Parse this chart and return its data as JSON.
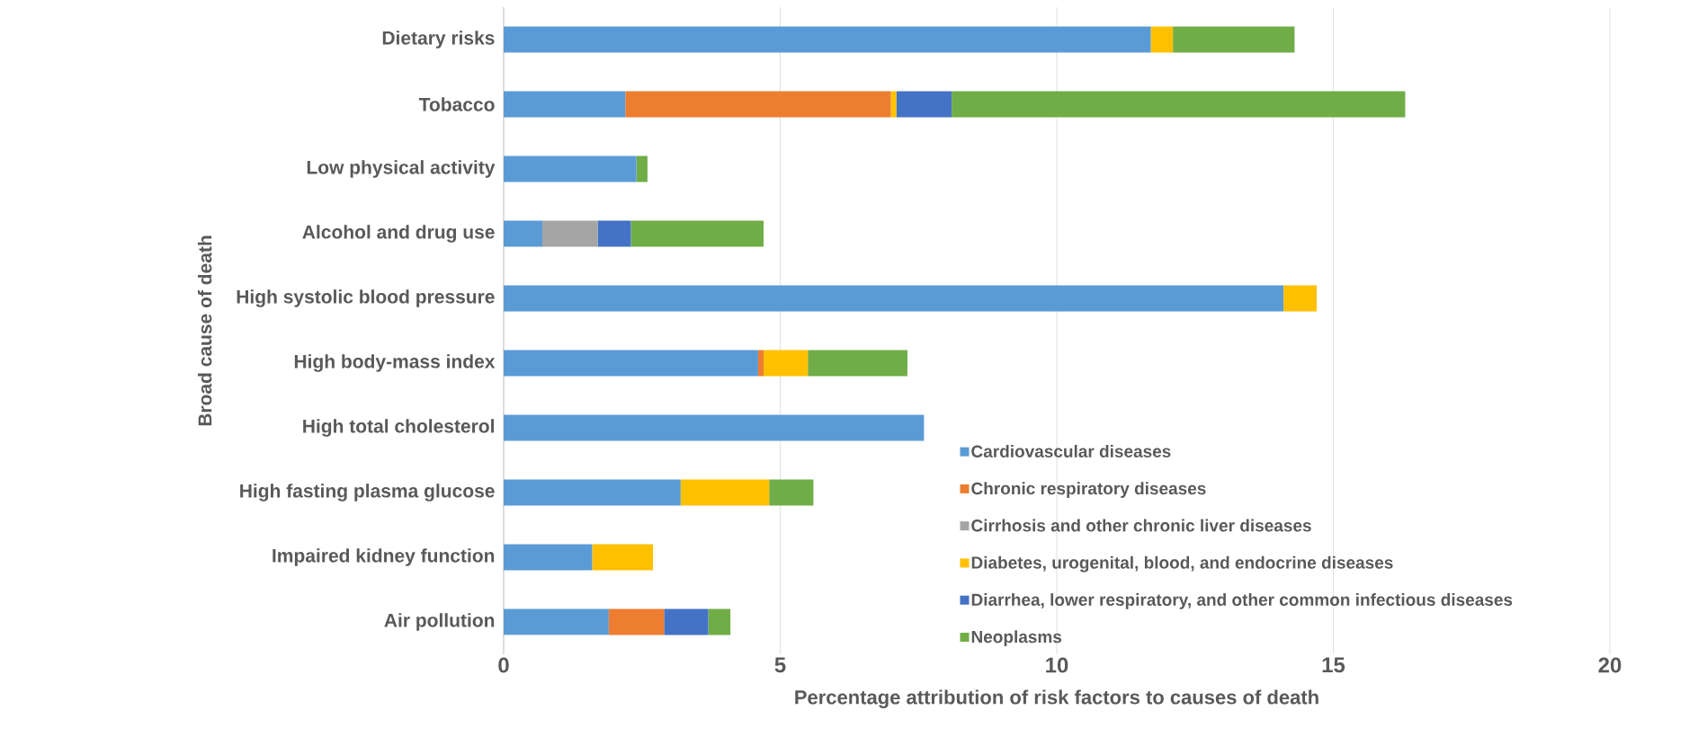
{
  "chart_data": {
    "type": "bar",
    "orientation": "horizontal",
    "stacked": true,
    "xlabel": "Percentage attribution of risk factors to causes of death",
    "ylabel": "Broad cause of death",
    "categories": [
      "Dietary risks",
      "Tobacco",
      "Low physical activity",
      "Alcohol and drug use",
      "High systolic blood pressure",
      "High body-mass index",
      "High total cholesterol",
      "High fasting plasma glucose",
      "Impaired kidney function",
      "Air pollution"
    ],
    "series": [
      {
        "name": "Cardiovascular diseases",
        "color": "#5b9bd5",
        "values": [
          11.7,
          2.2,
          2.4,
          0.7,
          14.1,
          4.6,
          7.6,
          3.2,
          1.6,
          1.9
        ]
      },
      {
        "name": "Chronic respiratory diseases",
        "color": "#ed7d31",
        "values": [
          null,
          4.8,
          null,
          null,
          null,
          0.1,
          null,
          null,
          null,
          1.0
        ]
      },
      {
        "name": "Cirrhosis and other chronic liver diseases",
        "color": "#a5a5a5",
        "values": [
          null,
          null,
          null,
          1.0,
          null,
          null,
          null,
          null,
          null,
          null
        ]
      },
      {
        "name": "Diabetes, urogenital, blood, and endocrine diseases",
        "color": "#ffc000",
        "values": [
          0.4,
          0.1,
          null,
          null,
          0.6,
          0.8,
          null,
          1.6,
          1.1,
          null
        ]
      },
      {
        "name": "Diarrhea, lower respiratory, and other common infectious diseases",
        "color": "#4472c4",
        "values": [
          null,
          1.0,
          null,
          0.6,
          null,
          null,
          null,
          null,
          null,
          0.8
        ]
      },
      {
        "name": "Neoplasms",
        "color": "#70ad47",
        "values": [
          2.2,
          8.2,
          0.2,
          2.4,
          null,
          1.8,
          null,
          0.8,
          null,
          0.4
        ]
      }
    ],
    "xlim": [
      0,
      20
    ],
    "xticks": [
      0,
      5,
      10,
      15,
      20
    ],
    "grid": "x",
    "legend": "bottom right"
  }
}
